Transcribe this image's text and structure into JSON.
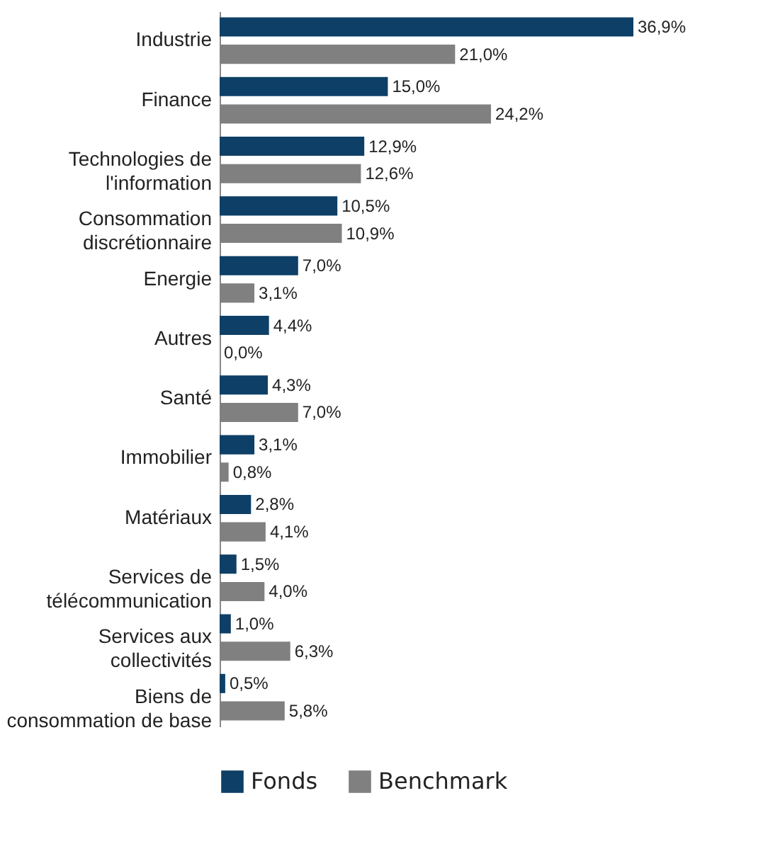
{
  "chart_data": {
    "type": "bar",
    "orientation": "horizontal",
    "categories": [
      "Industrie",
      "Finance",
      "Technologies de\nl'information",
      "Consommation\ndiscrétionnaire",
      "Energie",
      "Autres",
      "Santé",
      "Immobilier",
      "Matériaux",
      "Services de\ntélécommunication",
      "Services aux\ncollectivités",
      "Biens de\nconsommation de base"
    ],
    "series": [
      {
        "name": "Fonds",
        "color": "#0e3f66",
        "values": [
          36.9,
          15.0,
          12.9,
          10.5,
          7.0,
          4.4,
          4.3,
          3.1,
          2.8,
          1.5,
          1.0,
          0.5
        ],
        "value_labels": [
          "36,9%",
          "15,0%",
          "12,9%",
          "10,5%",
          "7,0%",
          "4,4%",
          "4,3%",
          "3,1%",
          "2,8%",
          "1,5%",
          "1,0%",
          "0,5%"
        ]
      },
      {
        "name": "Benchmark",
        "color": "#808080",
        "values": [
          21.0,
          24.2,
          12.6,
          10.9,
          3.1,
          0.0,
          7.0,
          0.8,
          4.1,
          4.0,
          6.3,
          5.8
        ],
        "value_labels": [
          "21,0%",
          "24,2%",
          "12,6%",
          "10,9%",
          "3,1%",
          "0,0%",
          "7,0%",
          "0,8%",
          "4,1%",
          "4,0%",
          "6,3%",
          "5,8%"
        ]
      }
    ],
    "legend": "bottom",
    "tick_labels": "y"
  }
}
